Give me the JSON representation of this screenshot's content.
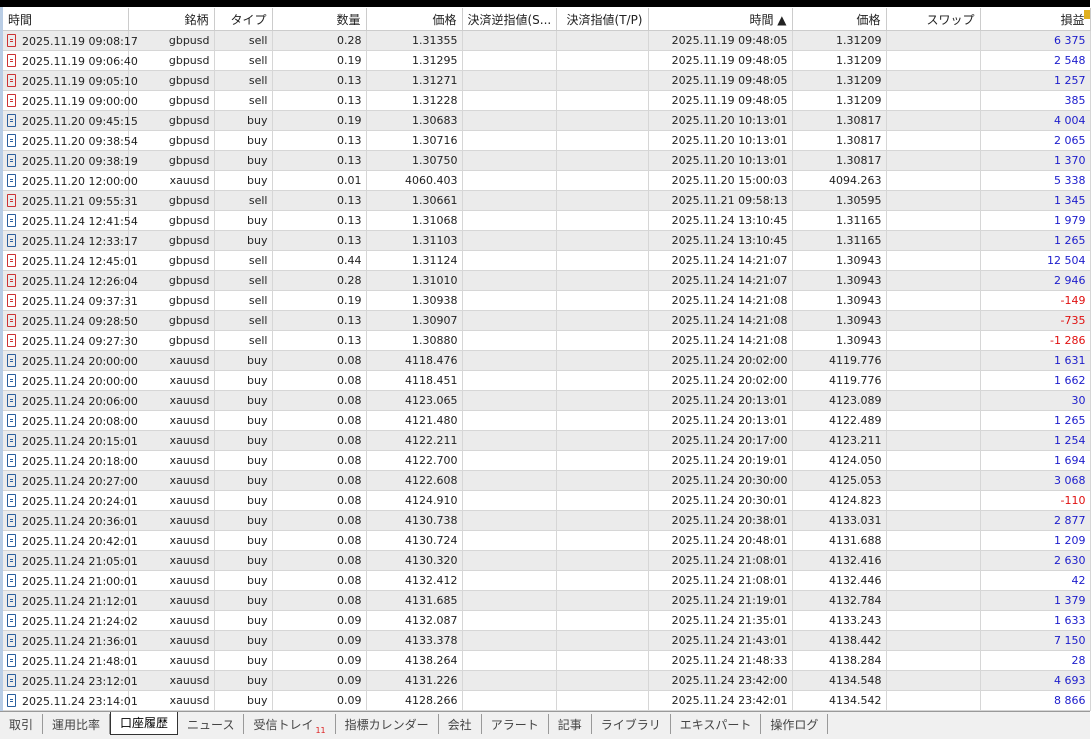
{
  "columns": [
    "時間",
    "銘柄",
    "タイプ",
    "数量",
    "価格",
    "決済逆指値(S...",
    "決済指値(T/P)",
    "時間 ▲",
    "価格",
    "スワップ",
    "損益"
  ],
  "rows": [
    [
      "sell",
      "2025.11.19 09:08:17",
      "gbpusd",
      "sell",
      "0.28",
      "1.31355",
      "",
      "",
      "2025.11.19 09:48:05",
      "1.31209",
      "",
      "6 375"
    ],
    [
      "sell",
      "2025.11.19 09:06:40",
      "gbpusd",
      "sell",
      "0.19",
      "1.31295",
      "",
      "",
      "2025.11.19 09:48:05",
      "1.31209",
      "",
      "2 548"
    ],
    [
      "sell",
      "2025.11.19 09:05:10",
      "gbpusd",
      "sell",
      "0.13",
      "1.31271",
      "",
      "",
      "2025.11.19 09:48:05",
      "1.31209",
      "",
      "1 257"
    ],
    [
      "sell",
      "2025.11.19 09:00:00",
      "gbpusd",
      "sell",
      "0.13",
      "1.31228",
      "",
      "",
      "2025.11.19 09:48:05",
      "1.31209",
      "",
      "385"
    ],
    [
      "buy",
      "2025.11.20 09:45:15",
      "gbpusd",
      "buy",
      "0.19",
      "1.30683",
      "",
      "",
      "2025.11.20 10:13:01",
      "1.30817",
      "",
      "4 004"
    ],
    [
      "buy",
      "2025.11.20 09:38:54",
      "gbpusd",
      "buy",
      "0.13",
      "1.30716",
      "",
      "",
      "2025.11.20 10:13:01",
      "1.30817",
      "",
      "2 065"
    ],
    [
      "buy",
      "2025.11.20 09:38:19",
      "gbpusd",
      "buy",
      "0.13",
      "1.30750",
      "",
      "",
      "2025.11.20 10:13:01",
      "1.30817",
      "",
      "1 370"
    ],
    [
      "buy",
      "2025.11.20 12:00:00",
      "xauusd",
      "buy",
      "0.01",
      "4060.403",
      "",
      "",
      "2025.11.20 15:00:03",
      "4094.263",
      "",
      "5 338"
    ],
    [
      "sell",
      "2025.11.21 09:55:31",
      "gbpusd",
      "sell",
      "0.13",
      "1.30661",
      "",
      "",
      "2025.11.21 09:58:13",
      "1.30595",
      "",
      "1 345"
    ],
    [
      "buy",
      "2025.11.24 12:41:54",
      "gbpusd",
      "buy",
      "0.13",
      "1.31068",
      "",
      "",
      "2025.11.24 13:10:45",
      "1.31165",
      "",
      "1 979"
    ],
    [
      "buy",
      "2025.11.24 12:33:17",
      "gbpusd",
      "buy",
      "0.13",
      "1.31103",
      "",
      "",
      "2025.11.24 13:10:45",
      "1.31165",
      "",
      "1 265"
    ],
    [
      "sell",
      "2025.11.24 12:45:01",
      "gbpusd",
      "sell",
      "0.44",
      "1.31124",
      "",
      "",
      "2025.11.24 14:21:07",
      "1.30943",
      "",
      "12 504"
    ],
    [
      "sell",
      "2025.11.24 12:26:04",
      "gbpusd",
      "sell",
      "0.28",
      "1.31010",
      "",
      "",
      "2025.11.24 14:21:07",
      "1.30943",
      "",
      "2 946"
    ],
    [
      "sell",
      "2025.11.24 09:37:31",
      "gbpusd",
      "sell",
      "0.19",
      "1.30938",
      "",
      "",
      "2025.11.24 14:21:08",
      "1.30943",
      "",
      "-149"
    ],
    [
      "sell",
      "2025.11.24 09:28:50",
      "gbpusd",
      "sell",
      "0.13",
      "1.30907",
      "",
      "",
      "2025.11.24 14:21:08",
      "1.30943",
      "",
      "-735"
    ],
    [
      "sell",
      "2025.11.24 09:27:30",
      "gbpusd",
      "sell",
      "0.13",
      "1.30880",
      "",
      "",
      "2025.11.24 14:21:08",
      "1.30943",
      "",
      "-1 286"
    ],
    [
      "buy",
      "2025.11.24 20:00:00",
      "xauusd",
      "buy",
      "0.08",
      "4118.476",
      "",
      "",
      "2025.11.24 20:02:00",
      "4119.776",
      "",
      "1 631"
    ],
    [
      "buy",
      "2025.11.24 20:00:00",
      "xauusd",
      "buy",
      "0.08",
      "4118.451",
      "",
      "",
      "2025.11.24 20:02:00",
      "4119.776",
      "",
      "1 662"
    ],
    [
      "buy",
      "2025.11.24 20:06:00",
      "xauusd",
      "buy",
      "0.08",
      "4123.065",
      "",
      "",
      "2025.11.24 20:13:01",
      "4123.089",
      "",
      "30"
    ],
    [
      "buy",
      "2025.11.24 20:08:00",
      "xauusd",
      "buy",
      "0.08",
      "4121.480",
      "",
      "",
      "2025.11.24 20:13:01",
      "4122.489",
      "",
      "1 265"
    ],
    [
      "buy",
      "2025.11.24 20:15:01",
      "xauusd",
      "buy",
      "0.08",
      "4122.211",
      "",
      "",
      "2025.11.24 20:17:00",
      "4123.211",
      "",
      "1 254"
    ],
    [
      "buy",
      "2025.11.24 20:18:00",
      "xauusd",
      "buy",
      "0.08",
      "4122.700",
      "",
      "",
      "2025.11.24 20:19:01",
      "4124.050",
      "",
      "1 694"
    ],
    [
      "buy",
      "2025.11.24 20:27:00",
      "xauusd",
      "buy",
      "0.08",
      "4122.608",
      "",
      "",
      "2025.11.24 20:30:00",
      "4125.053",
      "",
      "3 068"
    ],
    [
      "buy",
      "2025.11.24 20:24:01",
      "xauusd",
      "buy",
      "0.08",
      "4124.910",
      "",
      "",
      "2025.11.24 20:30:01",
      "4124.823",
      "",
      "-110"
    ],
    [
      "buy",
      "2025.11.24 20:36:01",
      "xauusd",
      "buy",
      "0.08",
      "4130.738",
      "",
      "",
      "2025.11.24 20:38:01",
      "4133.031",
      "",
      "2 877"
    ],
    [
      "buy",
      "2025.11.24 20:42:01",
      "xauusd",
      "buy",
      "0.08",
      "4130.724",
      "",
      "",
      "2025.11.24 20:48:01",
      "4131.688",
      "",
      "1 209"
    ],
    [
      "buy",
      "2025.11.24 21:05:01",
      "xauusd",
      "buy",
      "0.08",
      "4130.320",
      "",
      "",
      "2025.11.24 21:08:01",
      "4132.416",
      "",
      "2 630"
    ],
    [
      "buy",
      "2025.11.24 21:00:01",
      "xauusd",
      "buy",
      "0.08",
      "4132.412",
      "",
      "",
      "2025.11.24 21:08:01",
      "4132.446",
      "",
      "42"
    ],
    [
      "buy",
      "2025.11.24 21:12:01",
      "xauusd",
      "buy",
      "0.08",
      "4131.685",
      "",
      "",
      "2025.11.24 21:19:01",
      "4132.784",
      "",
      "1 379"
    ],
    [
      "buy",
      "2025.11.24 21:24:02",
      "xauusd",
      "buy",
      "0.09",
      "4132.087",
      "",
      "",
      "2025.11.24 21:35:01",
      "4133.243",
      "",
      "1 633"
    ],
    [
      "buy",
      "2025.11.24 21:36:01",
      "xauusd",
      "buy",
      "0.09",
      "4133.378",
      "",
      "",
      "2025.11.24 21:43:01",
      "4138.442",
      "",
      "7 150"
    ],
    [
      "buy",
      "2025.11.24 21:48:01",
      "xauusd",
      "buy",
      "0.09",
      "4138.264",
      "",
      "",
      "2025.11.24 21:48:33",
      "4138.284",
      "",
      "28"
    ],
    [
      "buy",
      "2025.11.24 23:12:01",
      "xauusd",
      "buy",
      "0.09",
      "4131.226",
      "",
      "",
      "2025.11.24 23:42:00",
      "4134.548",
      "",
      "4 693"
    ],
    [
      "buy",
      "2025.11.24 23:14:01",
      "xauusd",
      "buy",
      "0.09",
      "4128.266",
      "",
      "",
      "2025.11.24 23:42:01",
      "4134.542",
      "",
      "8 866"
    ]
  ],
  "tabs": [
    {
      "label": "取引"
    },
    {
      "label": "運用比率"
    },
    {
      "label": "口座履歴",
      "active": true
    },
    {
      "label": "ニュース"
    },
    {
      "label": "受信トレイ",
      "badge": "11"
    },
    {
      "label": "指標カレンダー"
    },
    {
      "label": "会社"
    },
    {
      "label": "アラート"
    },
    {
      "label": "記事"
    },
    {
      "label": "ライブラリ"
    },
    {
      "label": "エキスパート"
    },
    {
      "label": "操作ログ"
    }
  ],
  "colors": {
    "profit": "#1c1ccc",
    "loss": "#e01010",
    "sell_icon": "#cc3333",
    "buy_icon": "#2a5f9e",
    "alt_row": "#ebebeb"
  }
}
